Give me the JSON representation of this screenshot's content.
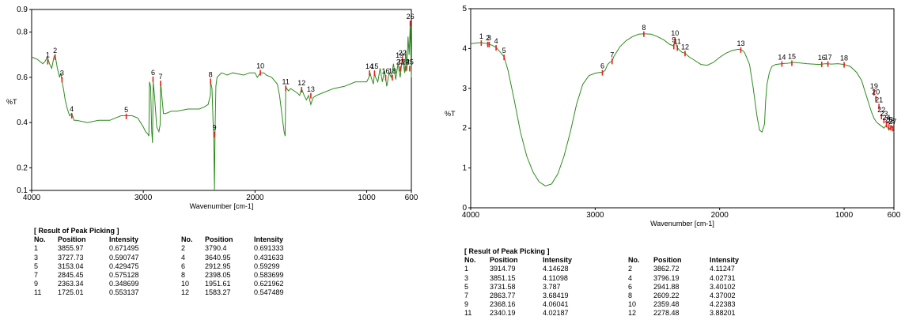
{
  "chart_data": [
    {
      "type": "line",
      "xlabel": "Wavenumber [cm-1]",
      "ylabel": "%T",
      "xlim": [
        4000,
        600
      ],
      "ylim": [
        0.1,
        0.9
      ],
      "x_ticks": [
        4000,
        3000,
        2000,
        1000,
        600
      ],
      "y_ticks": [
        0.1,
        0.2,
        0.4,
        0.6,
        0.8,
        0.9
      ],
      "y_tick_labels": [
        "0.1",
        "0.2",
        "0.4",
        "0.6",
        "0.8",
        "0.9"
      ],
      "color": "#2e8b1e",
      "peak_marker_color": "#e8201e",
      "series": [
        {
          "x": [
            4000,
            3950,
            3900,
            3880,
            3860,
            3840,
            3820,
            3800,
            3790,
            3770,
            3750,
            3740,
            3727,
            3715,
            3700,
            3680,
            3660,
            3640,
            3620,
            3600,
            3500,
            3400,
            3300,
            3200,
            3153,
            3100,
            3050,
            3000,
            2980,
            2960,
            2950,
            2945,
            2935,
            2925,
            2918,
            2912,
            2900,
            2880,
            2860,
            2850,
            2845,
            2835,
            2820,
            2800,
            2750,
            2700,
            2600,
            2500,
            2450,
            2420,
            2400,
            2398,
            2385,
            2375,
            2370,
            2363,
            2358,
            2350,
            2340,
            2320,
            2300,
            2250,
            2200,
            2100,
            2050,
            2000,
            1980,
            1951,
            1920,
            1900,
            1850,
            1800,
            1780,
            1760,
            1740,
            1730,
            1725,
            1715,
            1700,
            1680,
            1650,
            1620,
            1600,
            1583,
            1560,
            1540,
            1520,
            1500,
            1480,
            1450,
            1400,
            1300,
            1200,
            1100,
            1050,
            1000,
            980,
            970,
            960,
            940,
            930,
            920,
            900,
            880,
            860,
            840,
            820,
            800,
            780,
            760,
            740,
            720,
            700,
            680,
            660,
            650,
            640,
            630,
            620,
            610,
            600
          ],
          "y": [
            0.69,
            0.68,
            0.66,
            0.67,
            0.69,
            0.66,
            0.64,
            0.69,
            0.7,
            0.64,
            0.6,
            0.62,
            0.58,
            0.55,
            0.5,
            0.46,
            0.43,
            0.44,
            0.41,
            0.41,
            0.4,
            0.41,
            0.41,
            0.43,
            0.43,
            0.43,
            0.42,
            0.38,
            0.36,
            0.35,
            0.34,
            0.58,
            0.56,
            0.36,
            0.31,
            0.58,
            0.52,
            0.38,
            0.36,
            0.39,
            0.58,
            0.52,
            0.44,
            0.44,
            0.45,
            0.45,
            0.46,
            0.46,
            0.47,
            0.48,
            0.52,
            0.58,
            0.55,
            0.4,
            0.35,
            0.1,
            0.35,
            0.56,
            0.6,
            0.61,
            0.62,
            0.61,
            0.62,
            0.61,
            0.62,
            0.62,
            0.6,
            0.62,
            0.62,
            0.61,
            0.6,
            0.57,
            0.52,
            0.44,
            0.36,
            0.34,
            0.56,
            0.55,
            0.54,
            0.55,
            0.54,
            0.53,
            0.52,
            0.55,
            0.52,
            0.5,
            0.52,
            0.48,
            0.51,
            0.52,
            0.53,
            0.55,
            0.56,
            0.58,
            0.58,
            0.58,
            0.6,
            0.62,
            0.6,
            0.57,
            0.62,
            0.6,
            0.58,
            0.64,
            0.58,
            0.63,
            0.56,
            0.62,
            0.6,
            0.66,
            0.59,
            0.66,
            0.6,
            0.69,
            0.62,
            0.72,
            0.63,
            0.78,
            0.7,
            0.84,
            0.6
          ]
        }
      ],
      "peaks": [
        {
          "label": "1",
          "x": 3856,
          "y": 0.671
        },
        {
          "label": "2",
          "x": 3790,
          "y": 0.691
        },
        {
          "label": "3",
          "x": 3728,
          "y": 0.591
        },
        {
          "label": "4",
          "x": 3641,
          "y": 0.432
        },
        {
          "label": "5",
          "x": 3153,
          "y": 0.429
        },
        {
          "label": "6",
          "x": 2913,
          "y": 0.593
        },
        {
          "label": "7",
          "x": 2845,
          "y": 0.575
        },
        {
          "label": "8",
          "x": 2398,
          "y": 0.584
        },
        {
          "label": "9",
          "x": 2363,
          "y": 0.349
        },
        {
          "label": "10",
          "x": 1952,
          "y": 0.622
        },
        {
          "label": "11",
          "x": 1725,
          "y": 0.553
        },
        {
          "label": "12",
          "x": 1583,
          "y": 0.547
        },
        {
          "label": "13",
          "x": 1500,
          "y": 0.52
        },
        {
          "label": "14",
          "x": 975,
          "y": 0.62
        },
        {
          "label": "15",
          "x": 930,
          "y": 0.62
        },
        {
          "label": "16",
          "x": 830,
          "y": 0.6
        },
        {
          "label": "18",
          "x": 770,
          "y": 0.6
        },
        {
          "label": "19",
          "x": 705,
          "y": 0.67
        },
        {
          "label": "22",
          "x": 680,
          "y": 0.68
        },
        {
          "label": "23",
          "x": 700,
          "y": 0.64
        },
        {
          "label": "24",
          "x": 650,
          "y": 0.64
        },
        {
          "label": "25",
          "x": 615,
          "y": 0.64
        },
        {
          "label": "26",
          "x": 610,
          "y": 0.84
        }
      ],
      "table": {
        "title": "[ Result of Peak Picking ]",
        "columns": [
          "No.",
          "Position",
          "Intensity",
          "No.",
          "Position",
          "Intensity"
        ],
        "rows": [
          [
            "1",
            "3855.97",
            "0.671495",
            "2",
            "3790.4",
            "0.691333"
          ],
          [
            "3",
            "3727.73",
            "0.590747",
            "4",
            "3640.95",
            "0.431633"
          ],
          [
            "5",
            "3153.04",
            "0.429475",
            "6",
            "2912.95",
            "0.59299"
          ],
          [
            "7",
            "2845.45",
            "0.575128",
            "8",
            "2398.05",
            "0.583699"
          ],
          [
            "9",
            "2363.34",
            "0.348699",
            "10",
            "1951.61",
            "0.621962"
          ],
          [
            "11",
            "1725.01",
            "0.553137",
            "12",
            "1583.27",
            "0.547489"
          ]
        ]
      }
    },
    {
      "type": "line",
      "xlabel": "Wavenumber [cm-1]",
      "ylabel": "%T",
      "xlim": [
        4000,
        600
      ],
      "ylim": [
        0,
        5
      ],
      "x_ticks": [
        4000,
        3000,
        2000,
        1000,
        600
      ],
      "y_ticks": [
        0,
        1,
        2,
        3,
        4,
        5
      ],
      "y_tick_labels": [
        "0",
        "1",
        "2",
        "3",
        "4",
        "5"
      ],
      "color": "#2e8b1e",
      "peak_marker_color": "#e8201e",
      "series": [
        {
          "x": [
            4000,
            3950,
            3914,
            3880,
            3862,
            3851,
            3820,
            3796,
            3760,
            3731,
            3700,
            3650,
            3600,
            3550,
            3500,
            3450,
            3400,
            3350,
            3300,
            3250,
            3200,
            3150,
            3100,
            3050,
            3000,
            2960,
            2941,
            2920,
            2900,
            2880,
            2863,
            2850,
            2800,
            2750,
            2700,
            2650,
            2609,
            2550,
            2500,
            2450,
            2400,
            2380,
            2368,
            2359,
            2350,
            2340,
            2320,
            2300,
            2278,
            2250,
            2200,
            2150,
            2100,
            2050,
            2000,
            1950,
            1900,
            1850,
            1820,
            1800,
            1760,
            1730,
            1700,
            1680,
            1660,
            1640,
            1630,
            1620,
            1600,
            1580,
            1550,
            1500,
            1450,
            1400,
            1300,
            1200,
            1150,
            1100,
            1050,
            1000,
            950,
            900,
            860,
            840,
            820,
            800,
            780,
            760,
            740,
            720,
            700,
            680,
            660,
            640,
            620,
            600
          ],
          "y": [
            4.12,
            4.14,
            4.146,
            4.13,
            4.112,
            4.111,
            4.07,
            4.027,
            3.9,
            3.787,
            3.45,
            2.7,
            1.9,
            1.3,
            0.9,
            0.65,
            0.55,
            0.6,
            0.85,
            1.3,
            1.9,
            2.6,
            3.1,
            3.32,
            3.38,
            3.4,
            3.401,
            3.45,
            3.6,
            3.66,
            3.684,
            3.8,
            4.05,
            4.2,
            4.3,
            4.36,
            4.37,
            4.36,
            4.3,
            4.22,
            4.1,
            4.08,
            4.06,
            4.224,
            4.1,
            4.022,
            3.95,
            3.9,
            3.882,
            3.8,
            3.7,
            3.6,
            3.58,
            3.65,
            3.78,
            3.88,
            3.95,
            3.98,
            3.96,
            3.9,
            3.6,
            3.0,
            2.3,
            1.95,
            1.9,
            2.1,
            2.7,
            3.1,
            3.4,
            3.55,
            3.6,
            3.62,
            3.63,
            3.65,
            3.62,
            3.6,
            3.62,
            3.61,
            3.62,
            3.6,
            3.55,
            3.4,
            3.2,
            3.0,
            2.8,
            2.6,
            2.4,
            2.25,
            2.15,
            2.1,
            2.05,
            2.0,
            2.08,
            1.95,
            2.05,
            1.9
          ]
        }
      ],
      "peaks": [
        {
          "label": "1",
          "x": 3915,
          "y": 4.146
        },
        {
          "label": "2",
          "x": 3863,
          "y": 4.112
        },
        {
          "label": "3",
          "x": 3851,
          "y": 4.111
        },
        {
          "label": "4",
          "x": 3796,
          "y": 4.027
        },
        {
          "label": "5",
          "x": 3732,
          "y": 3.787
        },
        {
          "label": "6",
          "x": 2942,
          "y": 3.401
        },
        {
          "label": "7",
          "x": 2864,
          "y": 3.684
        },
        {
          "label": "8",
          "x": 2609,
          "y": 4.37
        },
        {
          "label": "9",
          "x": 2368,
          "y": 4.06
        },
        {
          "label": "10",
          "x": 2359,
          "y": 4.224
        },
        {
          "label": "11",
          "x": 2340,
          "y": 4.022
        },
        {
          "label": "12",
          "x": 2278,
          "y": 3.882
        },
        {
          "label": "13",
          "x": 1830,
          "y": 3.97
        },
        {
          "label": "14",
          "x": 1500,
          "y": 3.62
        },
        {
          "label": "15",
          "x": 1420,
          "y": 3.64
        },
        {
          "label": "16",
          "x": 1180,
          "y": 3.61
        },
        {
          "label": "17",
          "x": 1130,
          "y": 3.62
        },
        {
          "label": "18",
          "x": 1000,
          "y": 3.6
        },
        {
          "label": "19",
          "x": 760,
          "y": 2.9
        },
        {
          "label": "20",
          "x": 745,
          "y": 2.75
        },
        {
          "label": "21",
          "x": 720,
          "y": 2.55
        },
        {
          "label": "22",
          "x": 700,
          "y": 2.3
        },
        {
          "label": "23",
          "x": 680,
          "y": 2.2
        },
        {
          "label": "24",
          "x": 660,
          "y": 2.1
        },
        {
          "label": "25",
          "x": 640,
          "y": 2.05
        },
        {
          "label": "26",
          "x": 625,
          "y": 2.02
        },
        {
          "label": "27",
          "x": 610,
          "y": 2.0
        }
      ],
      "table": {
        "title": "[ Result of Peak Picking ]",
        "columns": [
          "No.",
          "Position",
          "Intensity",
          "No.",
          "Position",
          "Intensity"
        ],
        "rows": [
          [
            "1",
            "3914.79",
            "4.14628",
            "2",
            "3862.72",
            "4.11247"
          ],
          [
            "3",
            "3851.15",
            "4.11098",
            "4",
            "3796.19",
            "4.02731"
          ],
          [
            "5",
            "3731.58",
            "3.787",
            "6",
            "2941.88",
            "3.40102"
          ],
          [
            "7",
            "2863.77",
            "3.68419",
            "8",
            "2609.22",
            "4.37002"
          ],
          [
            "9",
            "2368.16",
            "4.06041",
            "10",
            "2359.48",
            "4.22383"
          ],
          [
            "11",
            "2340.19",
            "4.02187",
            "12",
            "2278.48",
            "3.88201"
          ]
        ]
      }
    }
  ]
}
